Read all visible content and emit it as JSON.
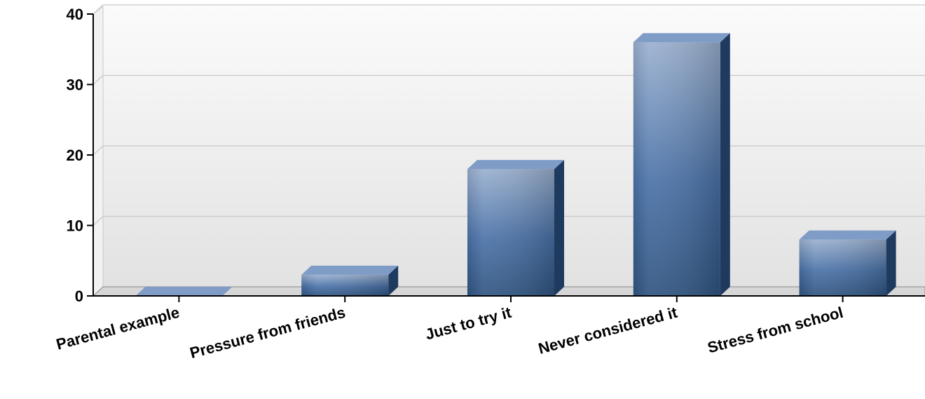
{
  "chart_data": {
    "type": "bar",
    "categories": [
      "Parental example",
      "Pressure from friends",
      "Just to try it",
      "Never considered it",
      "Stress from school"
    ],
    "values": [
      0,
      3,
      18,
      36,
      8
    ],
    "title": "",
    "xlabel": "",
    "ylabel": "",
    "ylim": [
      0,
      40
    ],
    "yticks": [
      "0",
      "10",
      "20",
      "30",
      "40"
    ],
    "grid": true,
    "legend": "none",
    "colors": {
      "bar_front_top": "#9ab0cf",
      "bar_front_mid": "#4a72a8",
      "bar_front_bottom": "#2f5480",
      "bar_top": "#7f9cc6",
      "bar_side": "#1f3a5f",
      "plot_bg_top": "#fbfbfb",
      "plot_bg_bottom": "#e2e2e2",
      "grid": "#c8c8c8",
      "axis": "#000000"
    }
  }
}
